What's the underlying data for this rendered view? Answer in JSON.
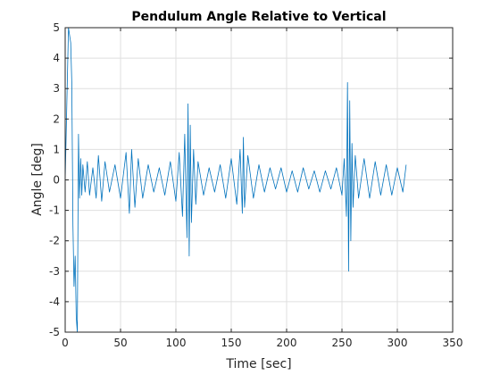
{
  "chart_data": {
    "type": "line",
    "title": "Pendulum Angle Relative to Vertical",
    "xlabel": "Time [sec]",
    "ylabel": "Angle [deg]",
    "xlim": [
      0,
      350
    ],
    "ylim": [
      -5,
      5
    ],
    "xticks": [
      "0",
      "50",
      "100",
      "150",
      "200",
      "250",
      "300",
      "350"
    ],
    "yticks": [
      "5",
      "4",
      "3",
      "2",
      "1",
      "0",
      "-1",
      "-2",
      "-3",
      "-4",
      "-5"
    ],
    "grid": true,
    "color": "#0072BD",
    "series": [
      {
        "x": [
          0,
          3,
          5,
          6,
          7,
          8,
          9,
          10,
          11,
          12,
          13,
          14,
          15,
          16,
          18,
          20,
          22,
          25,
          28,
          30,
          33,
          36,
          40,
          45,
          50,
          55,
          58,
          60,
          63,
          66,
          70,
          75,
          80,
          85,
          90,
          95,
          100,
          103,
          106,
          108,
          110,
          111,
          112,
          113,
          114,
          116,
          118,
          120,
          125,
          130,
          135,
          140,
          145,
          150,
          155,
          158,
          160,
          161,
          162,
          165,
          170,
          175,
          180,
          185,
          190,
          195,
          200,
          205,
          210,
          215,
          220,
          225,
          230,
          235,
          240,
          245,
          250,
          252,
          254,
          255,
          256,
          257,
          258,
          259,
          260,
          262,
          265,
          270,
          275,
          280,
          285,
          290,
          295,
          300,
          305,
          308
        ],
        "y": [
          0,
          5.0,
          4.5,
          3.2,
          -1.5,
          -3.5,
          -2.5,
          -4.5,
          -5.0,
          1.5,
          -0.6,
          0.7,
          -0.5,
          0.5,
          -0.4,
          0.6,
          -0.5,
          0.4,
          -0.6,
          0.8,
          -0.7,
          0.6,
          -0.4,
          0.5,
          -0.6,
          0.9,
          -1.1,
          1.0,
          -0.9,
          0.7,
          -0.6,
          0.5,
          -0.4,
          0.4,
          -0.5,
          0.6,
          -0.7,
          0.9,
          -1.2,
          1.5,
          -1.9,
          2.5,
          -2.5,
          1.8,
          -1.4,
          1.0,
          -0.8,
          0.6,
          -0.5,
          0.4,
          -0.4,
          0.5,
          -0.6,
          0.7,
          -0.8,
          1.0,
          -1.1,
          1.4,
          -0.9,
          0.8,
          -0.6,
          0.5,
          -0.4,
          0.4,
          -0.3,
          0.4,
          -0.4,
          0.3,
          -0.4,
          0.4,
          -0.3,
          0.3,
          -0.4,
          0.3,
          -0.3,
          0.4,
          -0.5,
          0.7,
          -1.2,
          3.2,
          -3.0,
          2.6,
          -2.0,
          1.2,
          -0.9,
          0.8,
          -0.6,
          0.7,
          -0.6,
          0.6,
          -0.5,
          0.5,
          -0.5,
          0.4,
          -0.4,
          0.5
        ]
      }
    ]
  }
}
